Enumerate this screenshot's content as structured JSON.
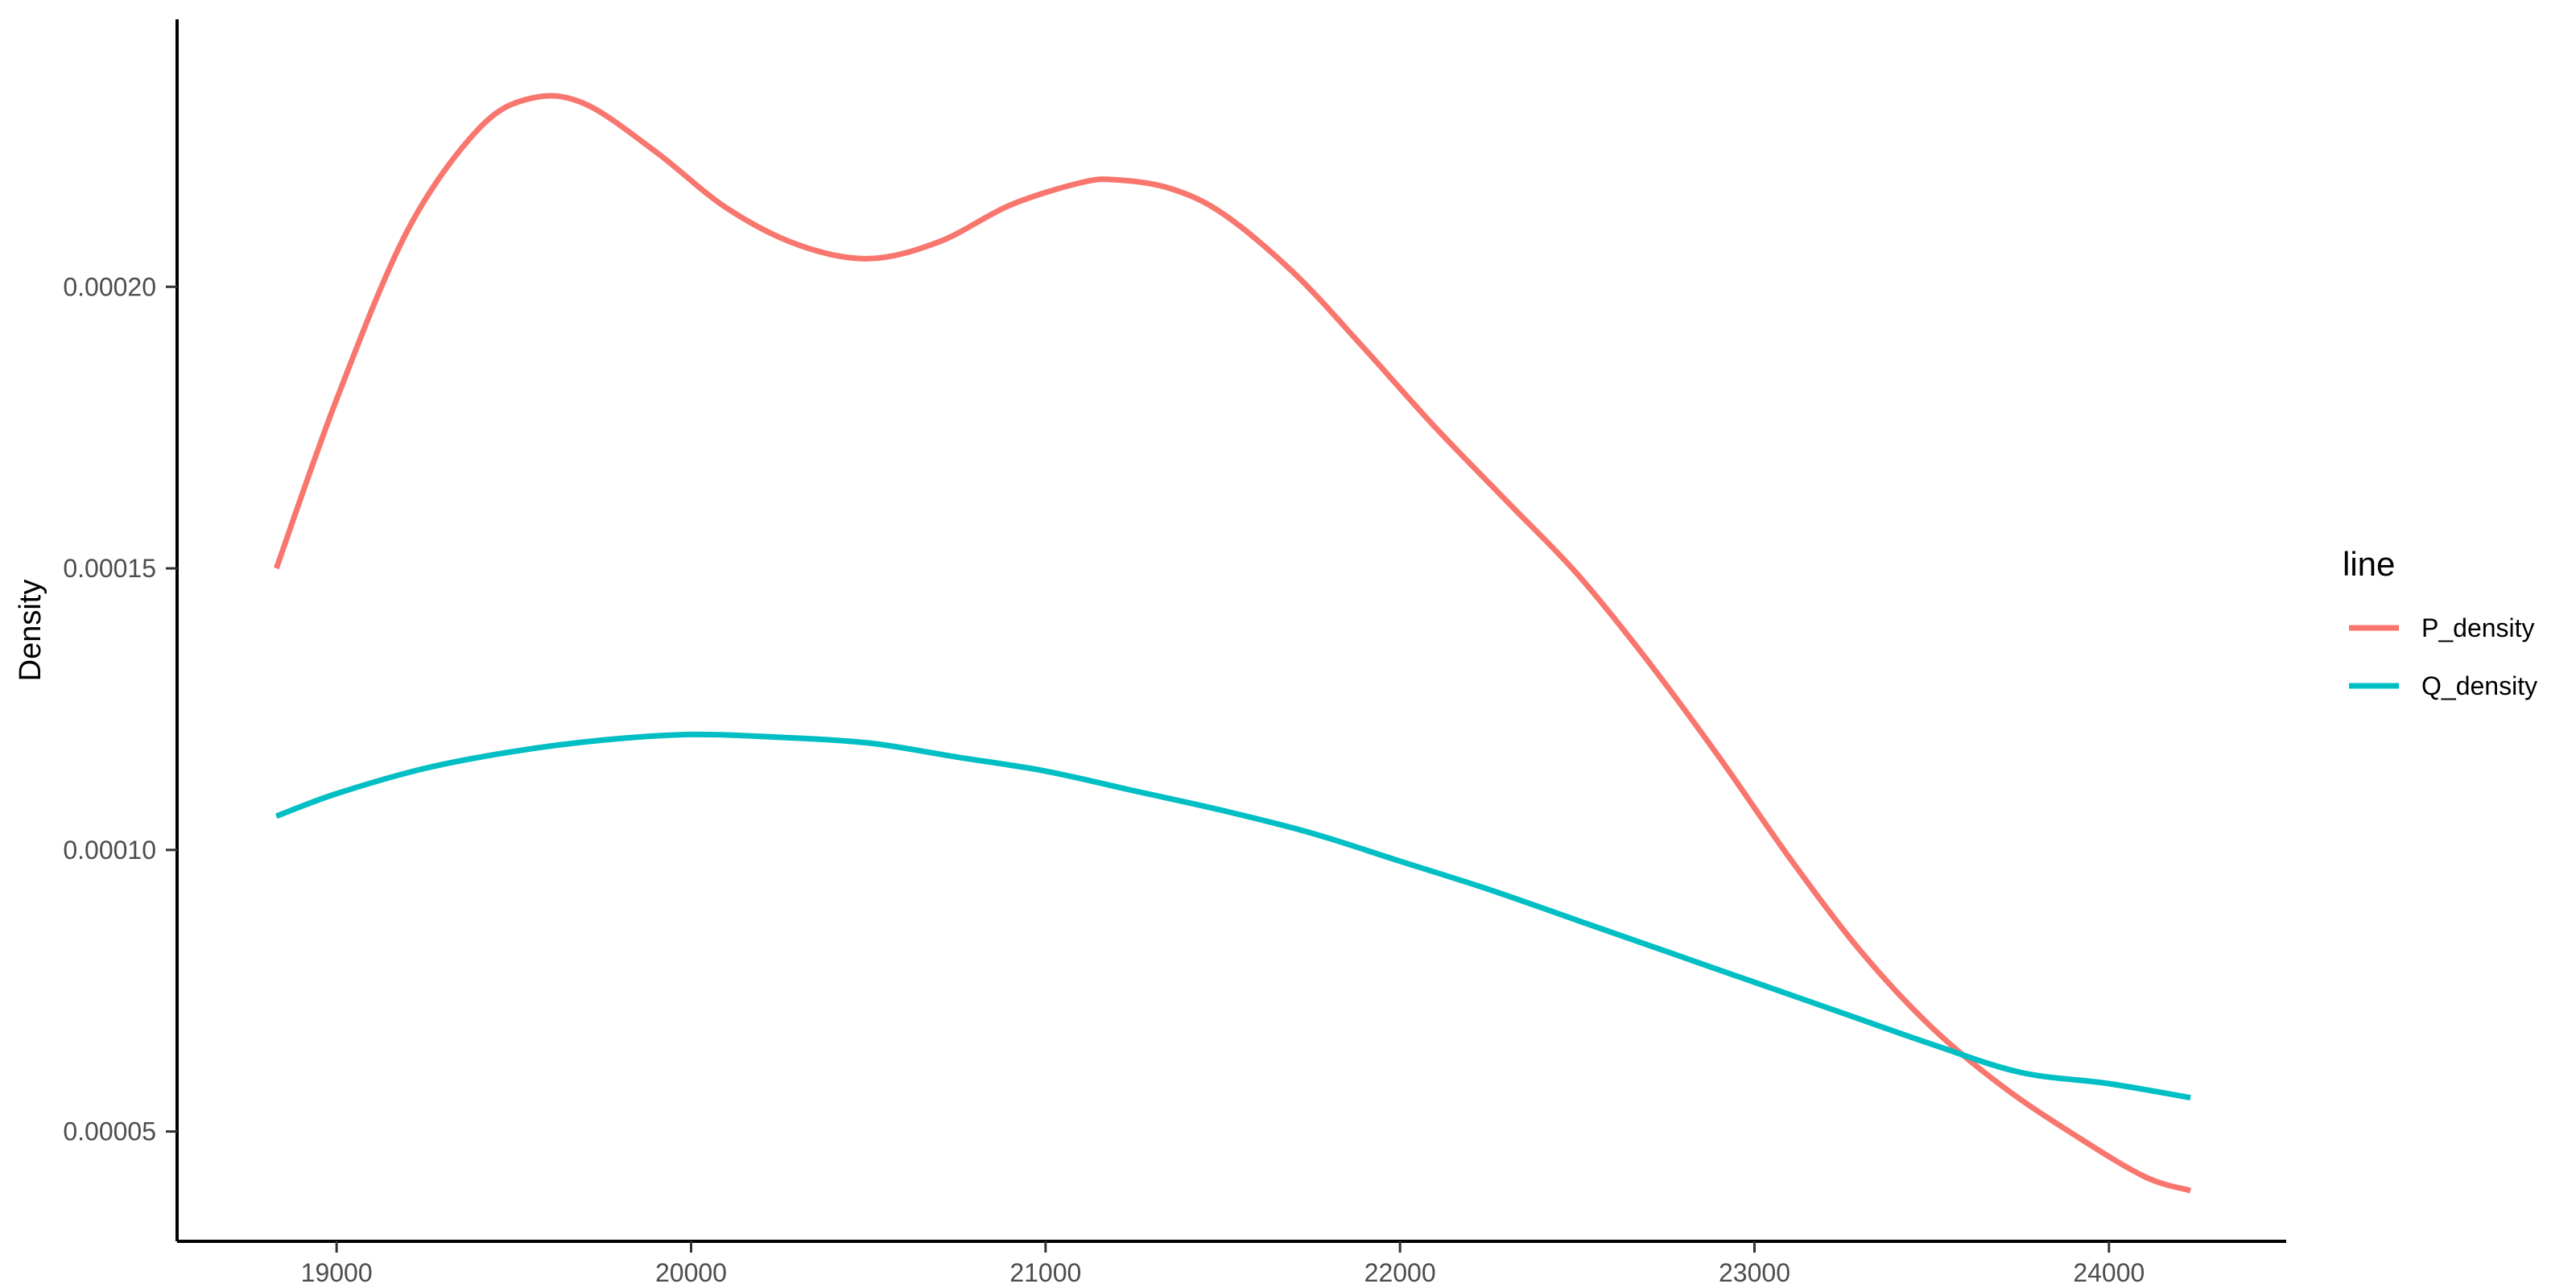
{
  "chart_data": {
    "type": "line",
    "title": "",
    "xlabel": "",
    "ylabel": "Density",
    "xlim": [
      18550,
      24500
    ],
    "ylim": [
      3.05e-05,
      0.0002475
    ],
    "x_ticks": [
      19000,
      20000,
      21000,
      22000,
      23000,
      24000
    ],
    "x_tick_labels": [
      "19000",
      "20000",
      "21000",
      "22000",
      "23000",
      "24000"
    ],
    "y_ticks": [
      5e-05,
      0.0001,
      0.00015,
      0.0002
    ],
    "y_tick_labels": [
      "0.00005",
      "0.00010",
      "0.00015",
      "0.00020"
    ],
    "grid": false,
    "legend": {
      "title": "line",
      "placement": "right"
    },
    "series": [
      {
        "name": "P_density",
        "color": "#F8766D",
        "x": [
          18830,
          19000,
          19200,
          19400,
          19550,
          19700,
          19900,
          20100,
          20300,
          20500,
          20700,
          20900,
          21100,
          21200,
          21350,
          21500,
          21700,
          21900,
          22100,
          22300,
          22500,
          22700,
          22900,
          23100,
          23300,
          23500,
          23700,
          23900,
          24100,
          24230
        ],
        "y": [
          0.00015,
          0.00018,
          0.00021,
          0.000228,
          0.0002335,
          0.0002325,
          0.000224,
          0.000214,
          0.0002075,
          0.000205,
          0.000208,
          0.0002145,
          0.0002185,
          0.000219,
          0.0002175,
          0.000213,
          0.0002025,
          0.000189,
          0.000175,
          0.000162,
          0.000149,
          0.0001335,
          0.0001165,
          9.85e-05,
          8.2e-05,
          6.85e-05,
          5.8e-05,
          4.95e-05,
          4.2e-05,
          3.95e-05
        ]
      },
      {
        "name": "Q_density",
        "color": "#00BFC4",
        "x": [
          18830,
          19000,
          19250,
          19500,
          19750,
          20000,
          20250,
          20500,
          20750,
          21000,
          21250,
          21500,
          21750,
          22000,
          22250,
          22500,
          22750,
          23000,
          23250,
          23500,
          23750,
          24000,
          24230
        ],
        "y": [
          0.000106,
          0.00011,
          0.0001145,
          0.0001175,
          0.0001195,
          0.0001205,
          0.00012,
          0.000119,
          0.0001165,
          0.000114,
          0.0001105,
          0.000107,
          0.000103,
          9.8e-05,
          9.3e-05,
          8.75e-05,
          8.2e-05,
          7.65e-05,
          7.1e-05,
          6.55e-05,
          6.05e-05,
          5.85e-05,
          5.6e-05
        ]
      }
    ]
  }
}
